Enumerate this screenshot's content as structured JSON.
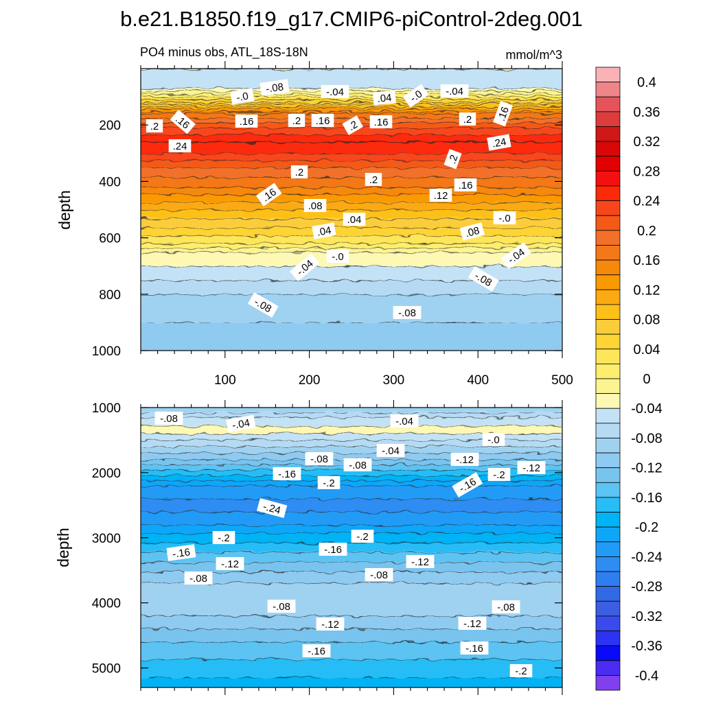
{
  "chart_data": {
    "type": "contour",
    "title": "b.e21.B1850.f19_g17.CMIP6-piControl-2deg.001",
    "subtitle_left": "PO4 minus obs, ATL_18S-18N",
    "units": "mmol/m^3",
    "xlabel": "",
    "ylabel": "depth",
    "xlim": [
      0,
      500
    ],
    "x_ticks": [
      "100",
      "200",
      "300",
      "400",
      "500"
    ],
    "colorbar": {
      "levels": [
        -0.4,
        -0.38,
        -0.36,
        -0.34,
        -0.32,
        -0.3,
        -0.28,
        -0.26,
        -0.24,
        -0.22,
        -0.2,
        -0.18,
        -0.16,
        -0.14,
        -0.12,
        -0.1,
        -0.08,
        -0.06,
        -0.04,
        -0.02,
        0,
        0.02,
        0.04,
        0.06,
        0.08,
        0.1,
        0.12,
        0.14,
        0.16,
        0.18,
        0.2,
        0.22,
        0.24,
        0.26,
        0.28,
        0.3,
        0.32,
        0.34,
        0.36,
        0.38,
        0.4
      ],
      "tick_labels": [
        "0.4",
        "0.36",
        "0.32",
        "0.28",
        "0.24",
        "0.2",
        "0.16",
        "0.12",
        "0.08",
        "0.04",
        "0",
        "-0.04",
        "-0.08",
        "-0.12",
        "-0.16",
        "-0.2",
        "-0.24",
        "-0.28",
        "-0.32",
        "-0.36",
        "-0.4"
      ],
      "colors_top_to_bottom": [
        "#f9b3b6",
        "#f08589",
        "#e5545a",
        "#dc3c3c",
        "#d01818",
        "#d80808",
        "#e30000",
        "#f51010",
        "#fd2a08",
        "#f8461c",
        "#f45a16",
        "#f2702a",
        "#f47818",
        "#f6880c",
        "#fa9a02",
        "#fbaa12",
        "#fdc018",
        "#fccd3a",
        "#fed436",
        "#fee65a",
        "#fdee6e",
        "#fbf490",
        "#fdf8b4",
        "#c4e2f6",
        "#b4dbf3",
        "#9fd2f0",
        "#8fcaf0",
        "#79c4ef",
        "#5cc3f3",
        "#28bdf6",
        "#00b3f5",
        "#10a6f8",
        "#229bf7",
        "#2f8cf2",
        "#2e7eef",
        "#326ae6",
        "#3b5fe0",
        "#3a4bee",
        "#2c33f2",
        "#0a0afa",
        "#4a2cf2",
        "#8040ee"
      ]
    },
    "panels": [
      {
        "name": "upper",
        "ylim": [
          0,
          1000
        ],
        "y_ticks": [
          "200",
          "400",
          "600",
          "800",
          "1000"
        ],
        "depth_profile": [
          [
            0,
            -0.04
          ],
          [
            60,
            -0.06
          ],
          [
            110,
            0.04
          ],
          [
            160,
            0.16
          ],
          [
            210,
            0.22
          ],
          [
            260,
            0.26
          ],
          [
            300,
            0.24
          ],
          [
            350,
            0.2
          ],
          [
            420,
            0.16
          ],
          [
            500,
            0.1
          ],
          [
            580,
            0.05
          ],
          [
            620,
            0.02
          ],
          [
            650,
            -0.02
          ],
          [
            700,
            -0.04
          ],
          [
            800,
            -0.08
          ],
          [
            900,
            -0.1
          ],
          [
            1000,
            -0.11
          ]
        ],
        "contour_labels": [
          "-.0",
          "-.08",
          "-.04",
          ".04",
          "-.0",
          "-.04",
          ".2",
          ".16",
          ".16",
          ".2",
          ".16",
          ".2",
          ".16",
          ".2",
          ".16",
          ".24",
          ".24",
          ".2",
          ".2",
          ".2",
          ".16",
          ".16",
          ".12",
          ".08",
          ".04",
          ".04",
          ".08",
          "-.0",
          "-.0",
          "-.04",
          "-.04",
          "-.08",
          "-.08",
          "-.08"
        ]
      },
      {
        "name": "lower",
        "ylim": [
          1000,
          5300
        ],
        "y_ticks": [
          "1000",
          "2000",
          "3000",
          "4000",
          "5000"
        ],
        "depth_profile": [
          [
            1000,
            -0.1
          ],
          [
            1150,
            -0.06
          ],
          [
            1350,
            -0.03
          ],
          [
            1600,
            -0.08
          ],
          [
            1800,
            -0.12
          ],
          [
            2000,
            -0.17
          ],
          [
            2200,
            -0.22
          ],
          [
            2500,
            -0.25
          ],
          [
            2800,
            -0.22
          ],
          [
            3000,
            -0.19
          ],
          [
            3300,
            -0.15
          ],
          [
            3600,
            -0.11
          ],
          [
            3900,
            -0.08
          ],
          [
            4200,
            -0.1
          ],
          [
            4600,
            -0.14
          ],
          [
            5000,
            -0.17
          ],
          [
            5300,
            -0.19
          ]
        ],
        "contour_labels": [
          "-.08",
          "-.04",
          "-.04",
          "-.04",
          "-.0",
          "-.08",
          "-.12",
          "-.08",
          "-.16",
          "-.2",
          "-.2",
          "-.16",
          "-.12",
          "-.24",
          "-.2",
          "-.2",
          "-.16",
          "-.16",
          "-.12",
          "-.12",
          "-.08",
          "-.08",
          "-.08",
          "-.08",
          "-.12",
          "-.12",
          "-.16",
          "-.16",
          "-.2"
        ]
      }
    ]
  }
}
